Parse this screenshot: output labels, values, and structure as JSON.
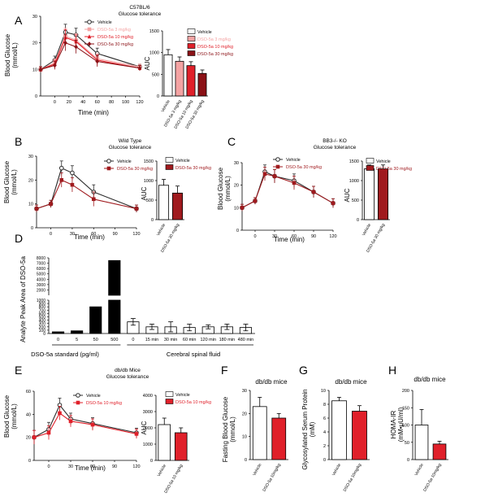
{
  "panels": {
    "A": {
      "letter": "A",
      "title_line1": "C57BL/6",
      "title_line2": "Glucose tolerance",
      "ylabel_line1": "Blood Glucose",
      "ylabel_line2": "(mmol/L)",
      "xlabel": "Time (min)",
      "auc_label": "AUC"
    },
    "B": {
      "letter": "B",
      "title_line1": "Wild Type",
      "title_line2": "Glucose tolerance",
      "ylabel_line1": "Blood Glucose",
      "ylabel_line2": "(mmol/L)",
      "xlabel": "Time (min)",
      "auc_label": "AUC"
    },
    "C": {
      "letter": "C",
      "title_line1": "BB3-/- KO",
      "title_line2": "Glucose tolerance",
      "ylabel_line1": "Blood Glucose",
      "ylabel_line2": "(mmol/L)",
      "xlabel": "Time (min)",
      "auc_label": "AUC"
    },
    "D": {
      "letter": "D",
      "ylabel": "Analyte Peak Area of DSO-5a",
      "group1_label": "DSO-5a standard (pg/ml)",
      "group2_label": "Cerebral spinal fluid"
    },
    "E": {
      "letter": "E",
      "title_line1": "db/db Mice",
      "title_line2": "Glucose tolerance",
      "ylabel_line1": "Blood Glucose",
      "ylabel_line2": "(mmol/L)",
      "xlabel": "Time (min)",
      "auc_label": "AUC"
    },
    "F": {
      "letter": "F",
      "title": "db/db mice",
      "ylabel_line1": "Fasting Blood Glucose",
      "ylabel_line2": "(mmol/L)"
    },
    "G": {
      "letter": "G",
      "title": "db/db mice",
      "ylabel_line1": "Glycosylated Serum Protein",
      "ylabel_line2": "(mM)"
    },
    "H": {
      "letter": "H",
      "title": "db/db mice",
      "ylabel_line1": "HOMA-IR",
      "ylabel_line2": "(mM•μU/ml)"
    }
  },
  "chart_data": [
    {
      "panel": "A",
      "type": "line",
      "x": [
        -20,
        0,
        15,
        30,
        60,
        120
      ],
      "xticks": [
        0,
        20,
        40,
        60,
        80,
        100,
        120
      ],
      "ylim": [
        0,
        30
      ],
      "yticks": [
        0,
        10,
        20,
        30
      ],
      "series": [
        {
          "name": "Vehicle",
          "values": [
            10,
            13.5,
            24,
            23,
            16,
            11
          ],
          "errors": [
            1,
            1.5,
            3,
            2.5,
            2,
            1
          ],
          "color": "#2b2b2b"
        },
        {
          "name": "DSO-5a 3 mg/kg",
          "values": [
            10,
            12.5,
            22.5,
            21,
            14,
            11
          ],
          "errors": [
            1,
            1.5,
            3,
            2.5,
            2,
            1
          ],
          "color": "#f4a3a3"
        },
        {
          "name": "DSO-5a 10 mg/kg",
          "values": [
            10,
            12,
            22,
            20.5,
            13.5,
            10.5
          ],
          "errors": [
            1,
            1.5,
            3,
            2.5,
            2,
            1
          ],
          "color": "#e0202a"
        },
        {
          "name": "DSO-5a 30 mg/kg",
          "values": [
            10,
            11.5,
            20,
            18.5,
            13,
            10.5
          ],
          "errors": [
            1,
            1.5,
            3,
            2.5,
            2,
            1
          ],
          "color": "#8b1116"
        }
      ]
    },
    {
      "panel": "A-AUC",
      "type": "bar",
      "categories": [
        "Vehicle",
        "DSO-5a 3 mg/kg",
        "DSO-5a 10 mg/kg",
        "DSO-5a 30 mg/kg"
      ],
      "values": [
        950,
        800,
        700,
        520
      ],
      "errors": [
        120,
        100,
        90,
        80
      ],
      "ylim": [
        0,
        1500
      ],
      "yticks": [
        0,
        500,
        1000,
        1500
      ],
      "colors": [
        "#ffffff",
        "#f4a3a3",
        "#e0202a",
        "#8b1116"
      ],
      "legend": [
        "Vehicle",
        "DSO-5a 3 mg/kg",
        "DSO-5a 10 mg/kg",
        "DSO-5a 30 mg/kg"
      ]
    },
    {
      "panel": "B",
      "type": "line",
      "x": [
        -20,
        0,
        15,
        30,
        60,
        120
      ],
      "xticks": [
        0,
        30,
        60,
        90,
        120
      ],
      "ylim": [
        0,
        30
      ],
      "yticks": [
        0,
        10,
        20,
        30
      ],
      "series": [
        {
          "name": "Vehicle",
          "values": [
            8,
            10,
            25,
            23,
            15,
            8
          ],
          "errors": [
            1.5,
            1.5,
            3,
            3,
            3,
            1.5
          ],
          "color": "#2b2b2b"
        },
        {
          "name": "DSO-5a 30 mg/kg",
          "values": [
            8,
            10,
            20,
            18,
            12,
            8
          ],
          "errors": [
            1.5,
            1.5,
            3,
            3,
            3,
            1.5
          ],
          "color": "#a01a1e"
        }
      ]
    },
    {
      "panel": "B-AUC",
      "type": "bar",
      "categories": [
        "Vehicle",
        "DSO-5a 30 mg/kg"
      ],
      "values": [
        880,
        680
      ],
      "errors": [
        150,
        180
      ],
      "ylim": [
        0,
        1500
      ],
      "yticks": [
        0,
        500,
        1000,
        1500
      ],
      "colors": [
        "#ffffff",
        "#a01a1e"
      ],
      "legend": [
        "Vehicle",
        "DSO-5a 30 mg/kg"
      ]
    },
    {
      "panel": "C",
      "type": "line",
      "x": [
        -20,
        0,
        15,
        30,
        60,
        90,
        120
      ],
      "xticks": [
        0,
        30,
        60,
        90,
        120
      ],
      "ylim": [
        0,
        30
      ],
      "yticks": [
        0,
        10,
        20,
        30
      ],
      "series": [
        {
          "name": "Vehicle",
          "values": [
            10,
            13,
            26,
            24,
            22,
            17,
            12
          ],
          "errors": [
            1.5,
            1.5,
            3,
            3,
            3,
            2.5,
            2
          ],
          "color": "#2b2b2b"
        },
        {
          "name": "DSO-5a 30 mg/kg",
          "values": [
            10,
            13,
            25,
            24,
            21,
            17,
            12
          ],
          "errors": [
            1.5,
            1.5,
            3,
            3,
            3,
            2.5,
            2
          ],
          "color": "#a01a1e"
        }
      ]
    },
    {
      "panel": "C-AUC",
      "type": "bar",
      "categories": [
        "Vehicle",
        "DSO-5a 30 mg/kg"
      ],
      "values": [
        1300,
        1300
      ],
      "errors": [
        100,
        100
      ],
      "ylim": [
        0,
        1500
      ],
      "yticks": [
        0,
        500,
        1000,
        1500
      ],
      "colors": [
        "#ffffff",
        "#a01a1e"
      ],
      "legend": [
        "Vehicle",
        "DSO-5a 30 mg/kg"
      ]
    },
    {
      "panel": "D",
      "type": "bar",
      "categories": [
        "0",
        "5",
        "50",
        "500",
        "0",
        "15 min",
        "30 min",
        "60 min",
        "120 min",
        "180 min",
        "480 min"
      ],
      "values": [
        50,
        80,
        800,
        7500,
        350,
        200,
        200,
        180,
        200,
        200,
        180
      ],
      "errors": [
        0,
        0,
        0,
        0,
        100,
        80,
        150,
        100,
        60,
        80,
        100
      ],
      "colors": [
        "#000000",
        "#000000",
        "#000000",
        "#000000",
        "#ffffff",
        "#ffffff",
        "#ffffff",
        "#ffffff",
        "#ffffff",
        "#ffffff",
        "#ffffff"
      ],
      "ylim": [
        0,
        8000
      ],
      "axis_break": [
        1000,
        2000
      ],
      "yticks": [
        0,
        100,
        200,
        300,
        400,
        500,
        600,
        700,
        800,
        900,
        1000,
        2000,
        3000,
        4000,
        5000,
        6000,
        7000,
        8000
      ]
    },
    {
      "panel": "E",
      "type": "line",
      "x": [
        -20,
        0,
        15,
        30,
        60,
        120
      ],
      "xticks": [
        0,
        30,
        60,
        90,
        120
      ],
      "ylim": [
        0,
        60
      ],
      "yticks": [
        0,
        20,
        40,
        60
      ],
      "series": [
        {
          "name": "Vehicle",
          "values": [
            20,
            27,
            48,
            36,
            32,
            24
          ],
          "errors": [
            6,
            6,
            6,
            5,
            5,
            4
          ],
          "color": "#2b2b2b"
        },
        {
          "name": "DSO-5a 10 mg/kg",
          "values": [
            20,
            24,
            41,
            34,
            31,
            23
          ],
          "errors": [
            6,
            6,
            6,
            5,
            5,
            4
          ],
          "color": "#e0202a"
        }
      ]
    },
    {
      "panel": "E-AUC",
      "type": "bar",
      "categories": [
        "Vehicle",
        "DSO-5a 10 mg/kg"
      ],
      "values": [
        2200,
        1700
      ],
      "errors": [
        400,
        300
      ],
      "ylim": [
        0,
        4000
      ],
      "yticks": [
        0,
        1000,
        2000,
        3000,
        4000
      ],
      "colors": [
        "#ffffff",
        "#e0202a"
      ],
      "legend": [
        "Vehicle",
        "DSO-5a 10 mg/kg"
      ]
    },
    {
      "panel": "F",
      "type": "bar",
      "categories": [
        "Vehicle",
        "DSO-5a 10mg/kg"
      ],
      "values": [
        23,
        18
      ],
      "errors": [
        4,
        2
      ],
      "ylim": [
        0,
        30
      ],
      "yticks": [
        0,
        10,
        20,
        30
      ],
      "colors": [
        "#ffffff",
        "#e0202a"
      ]
    },
    {
      "panel": "G",
      "type": "bar",
      "categories": [
        "Vehicle",
        "DSO-5a 10mg/kg"
      ],
      "values": [
        8.5,
        7
      ],
      "errors": [
        0.5,
        0.8
      ],
      "ylim": [
        0,
        10
      ],
      "yticks": [
        0,
        2,
        4,
        6,
        8,
        10
      ],
      "colors": [
        "#ffffff",
        "#e0202a"
      ]
    },
    {
      "panel": "H",
      "type": "bar",
      "categories": [
        "Vehicle",
        "DSO-5a 10mg/kg"
      ],
      "values": [
        100,
        45
      ],
      "errors": [
        45,
        8
      ],
      "ylim": [
        0,
        200
      ],
      "yticks": [
        0,
        50,
        100,
        150,
        200
      ],
      "colors": [
        "#ffffff",
        "#e0202a"
      ]
    }
  ]
}
